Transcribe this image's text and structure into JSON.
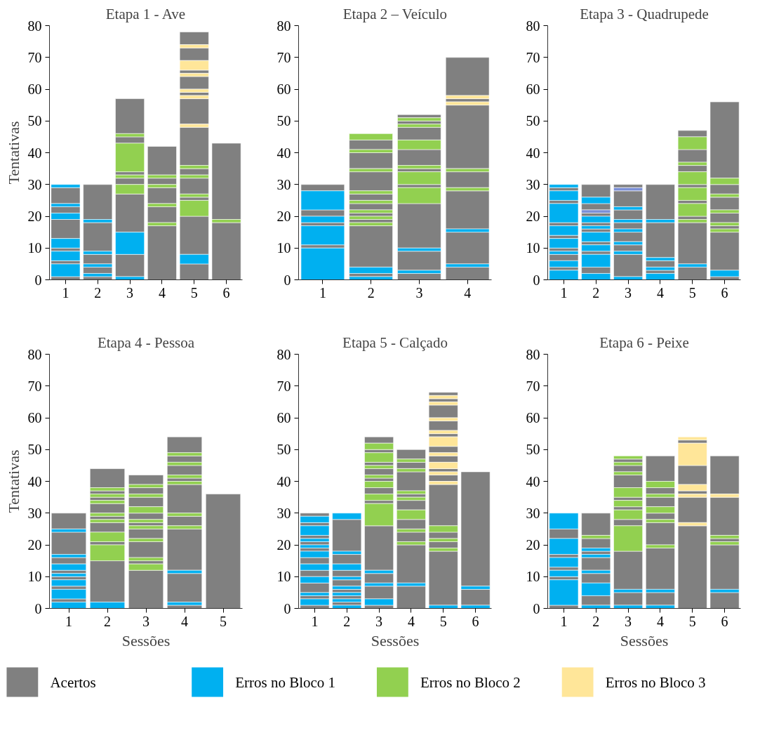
{
  "chart_data": [
    {
      "type": "bar",
      "title": "Etapa 1 - Ave",
      "legend": "bottom",
      "ylabel": "Tentativas",
      "categories": [
        "1",
        "2",
        "3",
        "4",
        "5",
        "6"
      ],
      "ylim": [
        0,
        80
      ],
      "yticks": [
        0,
        10,
        20,
        30,
        40,
        50,
        60,
        70,
        80
      ],
      "series": [
        {
          "name": "Acertos",
          "color": "#808080",
          "x": [
            "1",
            "1",
            "1",
            "1",
            "1",
            "1",
            "2",
            "2",
            "2",
            "2",
            "2",
            "3",
            "3",
            "3",
            "3",
            "3",
            "3",
            "4",
            "4",
            "4",
            "4",
            "4",
            "5",
            "5",
            "5",
            "5",
            "5",
            "5",
            "5",
            "5",
            "5",
            "5",
            "5",
            "5",
            "6",
            "6"
          ],
          "base": [
            0,
            5,
            9,
            13,
            21,
            24,
            0,
            2,
            5,
            9,
            19,
            1,
            15,
            30,
            33,
            43,
            46,
            0,
            18,
            24,
            30,
            33,
            0,
            8,
            25,
            27,
            33,
            36,
            49,
            58,
            60,
            65,
            69,
            74,
            0,
            19
          ],
          "values": [
            1,
            1,
            1,
            6,
            2,
            5,
            1,
            2,
            3,
            9,
            11,
            7,
            12,
            2,
            1,
            2,
            11,
            17,
            5,
            5,
            2,
            9,
            5,
            12,
            1,
            5,
            2,
            12,
            8,
            1,
            4,
            1,
            4,
            4,
            18,
            24
          ]
        },
        {
          "name": "Erros no Bloco 1",
          "color": "#00b0f0",
          "x": [
            "1",
            "1",
            "1",
            "1",
            "1",
            "1",
            "2",
            "2",
            "2",
            "2",
            "3",
            "3",
            "5"
          ],
          "base": [
            1,
            6,
            10,
            19,
            23,
            29,
            1,
            4,
            8,
            18,
            0,
            8,
            5
          ],
          "values": [
            4,
            3,
            3,
            2,
            1,
            1,
            1,
            1,
            1,
            1,
            1,
            7,
            3
          ]
        },
        {
          "name": "Erros no Bloco 2",
          "color": "#92d050",
          "x": [
            "3",
            "3",
            "3",
            "3",
            "4",
            "4",
            "4",
            "4",
            "5",
            "5",
            "5",
            "5",
            "6"
          ],
          "base": [
            27,
            32,
            34,
            45,
            17,
            23,
            29,
            32,
            20,
            26,
            32,
            35,
            18
          ],
          "values": [
            3,
            1,
            9,
            1,
            1,
            1,
            1,
            1,
            5,
            1,
            1,
            1,
            1
          ]
        },
        {
          "name": "Erros no Bloco 3",
          "color": "#ffe699",
          "x": [
            "5",
            "5",
            "5",
            "5",
            "5",
            "5"
          ],
          "base": [
            48,
            57,
            59,
            64,
            66,
            73
          ],
          "values": [
            1,
            1,
            1,
            1,
            3,
            1
          ]
        }
      ]
    },
    {
      "type": "bar",
      "title": "Etapa 2 – Veículo",
      "legend": "bottom",
      "categories": [
        "1",
        "2",
        "3",
        "4"
      ],
      "ylim": [
        0,
        80
      ],
      "yticks": [
        0,
        10,
        20,
        30,
        40,
        50,
        60,
        70,
        80
      ],
      "series": [
        {
          "name": "Acertos",
          "color": "#808080",
          "x": [
            "1",
            "1",
            "1",
            "1",
            "2",
            "2",
            "2",
            "2",
            "2",
            "2",
            "2",
            "2",
            "2",
            "3",
            "3",
            "3",
            "3",
            "3",
            "3",
            "3",
            "3",
            "3",
            "4",
            "4",
            "4",
            "4",
            "4",
            "4",
            "4"
          ],
          "base": [
            10,
            17,
            20,
            28,
            1,
            4,
            18,
            20,
            22,
            25,
            28,
            35,
            41,
            0,
            3,
            10,
            29,
            34,
            36,
            44,
            49,
            51,
            0,
            5,
            16,
            29,
            35,
            56,
            58
          ],
          "values": [
            1,
            1,
            2,
            2,
            1,
            13,
            1,
            1,
            2,
            2,
            6,
            5,
            3,
            2,
            6,
            14,
            1,
            1,
            5,
            4,
            1,
            1,
            4,
            10,
            12,
            5,
            20,
            1,
            12
          ]
        },
        {
          "name": "Erros no Bloco 1",
          "color": "#00b0f0",
          "x": [
            "1",
            "1",
            "1",
            "1",
            "2",
            "2",
            "3",
            "3",
            "4",
            "4"
          ],
          "base": [
            0,
            11,
            18,
            22,
            0,
            2,
            2,
            9,
            4,
            15
          ],
          "values": [
            10,
            6,
            2,
            6,
            1,
            2,
            1,
            1,
            1,
            1
          ]
        },
        {
          "name": "Erros no Bloco 2",
          "color": "#92d050",
          "x": [
            "2",
            "2",
            "2",
            "2",
            "2",
            "2",
            "2",
            "2",
            "3",
            "3",
            "3",
            "3",
            "3",
            "3",
            "4",
            "4"
          ],
          "base": [
            17,
            19,
            21,
            24,
            27,
            34,
            40,
            44,
            24,
            30,
            35,
            41,
            48,
            50,
            28,
            34
          ],
          "values": [
            1,
            1,
            1,
            1,
            1,
            1,
            1,
            2,
            5,
            4,
            1,
            3,
            1,
            1,
            1,
            1
          ]
        },
        {
          "name": "Erros no Bloco 3",
          "color": "#ffe699",
          "x": [
            "4",
            "4"
          ],
          "base": [
            55,
            57
          ],
          "values": [
            1,
            1
          ]
        }
      ]
    },
    {
      "type": "bar",
      "title": "Etapa 3 - Quadrupede",
      "legend": "bottom",
      "categories": [
        "1",
        "2",
        "3",
        "4",
        "5",
        "6"
      ],
      "ylim": [
        0,
        80
      ],
      "yticks": [
        0,
        10,
        20,
        30,
        40,
        50,
        60,
        70,
        80
      ],
      "series": [
        {
          "name": "Acertos",
          "color": "#808080",
          "x": [
            "1",
            "1",
            "1",
            "1",
            "1",
            "1",
            "1",
            "2",
            "2",
            "2",
            "2",
            "2",
            "2",
            "2",
            "2",
            "3",
            "3",
            "3",
            "3",
            "3",
            "3",
            "3",
            "4",
            "4",
            "4",
            "4",
            "5",
            "5",
            "5",
            "5",
            "5",
            "5",
            "5",
            "5",
            "6",
            "6",
            "6",
            "6",
            "6",
            "6",
            "6"
          ],
          "base": [
            3,
            6,
            9,
            13,
            17,
            24,
            28,
            2,
            8,
            11,
            15,
            17,
            20,
            22,
            26,
            1,
            9,
            12,
            16,
            19,
            23,
            29,
            2,
            4,
            7,
            19,
            0,
            5,
            19,
            24,
            29,
            34,
            37,
            45,
            0,
            3,
            16,
            18,
            22,
            27,
            32
          ],
          "values": [
            1,
            2,
            1,
            1,
            1,
            1,
            1,
            2,
            1,
            1,
            1,
            1,
            1,
            2,
            4,
            7,
            2,
            3,
            2,
            3,
            5,
            1,
            1,
            2,
            11,
            11,
            4,
            13,
            1,
            1,
            1,
            2,
            4,
            2,
            1,
            12,
            1,
            3,
            4,
            3,
            24
          ]
        },
        {
          "name": "Erros no Bloco 1",
          "color": "#00b0f0",
          "x": [
            "1",
            "1",
            "1",
            "1",
            "1",
            "1",
            "1",
            "1",
            "2",
            "2",
            "2",
            "2",
            "2",
            "2",
            "2",
            "3",
            "3",
            "3",
            "3",
            "3",
            "3",
            "4",
            "4",
            "4",
            "4",
            "5",
            "6"
          ],
          "base": [
            0,
            4,
            8,
            10,
            14,
            18,
            25,
            29,
            0,
            4,
            9,
            12,
            16,
            18,
            24,
            0,
            8,
            11,
            15,
            18,
            22,
            0,
            3,
            6,
            18,
            4,
            1
          ],
          "values": [
            3,
            2,
            1,
            3,
            3,
            6,
            3,
            1,
            2,
            4,
            2,
            3,
            1,
            2,
            2,
            1,
            1,
            1,
            1,
            1,
            1,
            2,
            1,
            1,
            1,
            1,
            2
          ]
        },
        {
          "color": "#7b8fd6",
          "x": [
            "2",
            "3"
          ],
          "base": [
            21,
            28
          ],
          "values": [
            1,
            1
          ]
        },
        {
          "name": "Erros no Bloco 2",
          "color": "#92d050",
          "x": [
            "5",
            "5",
            "5",
            "5",
            "5",
            "5",
            "6",
            "6",
            "6",
            "6",
            "6"
          ],
          "base": [
            18,
            20,
            25,
            30,
            36,
            41,
            15,
            17,
            21,
            26,
            30
          ],
          "values": [
            1,
            4,
            4,
            4,
            1,
            4,
            1,
            1,
            1,
            1,
            2
          ]
        }
      ]
    },
    {
      "type": "bar",
      "title": "Etapa 4 - Pessoa",
      "legend": "bottom",
      "ylabel": "Tentativas",
      "xlabel": "Sessões",
      "categories": [
        "1",
        "2",
        "3",
        "4",
        "5"
      ],
      "ylim": [
        0,
        80
      ],
      "yticks": [
        0,
        10,
        20,
        30,
        40,
        50,
        60,
        70,
        80
      ],
      "series": [
        {
          "name": "Acertos",
          "color": "#808080",
          "x": [
            "1",
            "1",
            "1",
            "1",
            "1",
            "1",
            "1",
            "2",
            "2",
            "2",
            "2",
            "2",
            "2",
            "2",
            "2",
            "3",
            "3",
            "3",
            "3",
            "3",
            "3",
            "3",
            "3",
            "3",
            "4",
            "4",
            "4",
            "4",
            "4",
            "4",
            "4",
            "4",
            "4",
            "5"
          ],
          "base": [
            2,
            6,
            9,
            11,
            14,
            17,
            25,
            2,
            20,
            24,
            28,
            30,
            34,
            36,
            38,
            0,
            14,
            16,
            22,
            26,
            28,
            32,
            36,
            39,
            0,
            2,
            12,
            26,
            30,
            40,
            42,
            46,
            49,
            0
          ],
          "values": [
            1,
            1,
            1,
            1,
            2,
            7,
            5,
            13,
            1,
            3,
            1,
            3,
            1,
            1,
            6,
            12,
            1,
            5,
            3,
            1,
            2,
            3,
            2,
            3,
            1,
            9,
            13,
            3,
            9,
            1,
            3,
            2,
            5,
            36
          ]
        },
        {
          "name": "Erros no Bloco 1",
          "color": "#00b0f0",
          "x": [
            "1",
            "1",
            "1",
            "1",
            "1",
            "1",
            "1",
            "2",
            "4",
            "4"
          ],
          "base": [
            0,
            3,
            7,
            10,
            12,
            16,
            24,
            0,
            1,
            11
          ],
          "values": [
            2,
            3,
            2,
            1,
            2,
            1,
            1,
            2,
            1,
            1
          ]
        },
        {
          "name": "Erros no Bloco 2",
          "color": "#92d050",
          "x": [
            "2",
            "2",
            "2",
            "2",
            "2",
            "2",
            "2",
            "3",
            "3",
            "3",
            "3",
            "3",
            "3",
            "3",
            "3",
            "4",
            "4",
            "4",
            "4",
            "4",
            "4"
          ],
          "base": [
            15,
            21,
            27,
            29,
            33,
            35,
            37,
            12,
            15,
            21,
            25,
            27,
            30,
            35,
            38,
            25,
            29,
            39,
            41,
            45,
            48
          ],
          "values": [
            5,
            3,
            1,
            1,
            1,
            1,
            1,
            2,
            1,
            1,
            1,
            1,
            2,
            1,
            1,
            1,
            1,
            1,
            1,
            1,
            1
          ]
        }
      ]
    },
    {
      "type": "bar",
      "title": "Etapa 5 - Calçado",
      "legend": "bottom",
      "xlabel": "Sessões",
      "categories": [
        "1",
        "2",
        "3",
        "4",
        "5",
        "6"
      ],
      "ylim": [
        0,
        80
      ],
      "yticks": [
        0,
        10,
        20,
        30,
        40,
        50,
        60,
        70,
        80
      ],
      "series": [
        {
          "name": "Acertos",
          "color": "#808080",
          "x": [
            "1",
            "1",
            "1",
            "1",
            "1",
            "1",
            "1",
            "1",
            "1",
            "1",
            "2",
            "2",
            "2",
            "2",
            "2",
            "2",
            "2",
            "3",
            "3",
            "3",
            "3",
            "3",
            "3",
            "3",
            "3",
            "3",
            "3",
            "3",
            "4",
            "4",
            "4",
            "4",
            "4",
            "4",
            "4",
            "4",
            "4",
            "5",
            "5",
            "5",
            "5",
            "5",
            "5",
            "5",
            "5",
            "5",
            "5",
            "5",
            "5",
            "5",
            "6",
            "6"
          ],
          "base": [
            0,
            3,
            5,
            10,
            14,
            18,
            20,
            22,
            26,
            29,
            1,
            3,
            5,
            7,
            10,
            14,
            18,
            0,
            3,
            8,
            12,
            33,
            36,
            40,
            42,
            45,
            49,
            52,
            0,
            8,
            21,
            25,
            31,
            35,
            37,
            44,
            47,
            1,
            19,
            22,
            26,
            40,
            43,
            46,
            49,
            54,
            56,
            60,
            65,
            67,
            1,
            7
          ],
          "values": [
            1,
            1,
            3,
            2,
            2,
            1,
            1,
            1,
            1,
            1,
            1,
            1,
            1,
            2,
            2,
            3,
            10,
            1,
            4,
            3,
            14,
            1,
            2,
            1,
            2,
            1,
            1,
            2,
            7,
            12,
            3,
            3,
            3,
            1,
            6,
            2,
            3,
            17,
            2,
            2,
            13,
            2,
            1,
            2,
            2,
            1,
            3,
            4,
            1,
            1,
            5,
            36
          ]
        },
        {
          "name": "Erros no Bloco 1",
          "color": "#00b0f0",
          "x": [
            "1",
            "1",
            "1",
            "1",
            "1",
            "1",
            "1",
            "1",
            "1",
            "2",
            "2",
            "2",
            "2",
            "2",
            "2",
            "2",
            "2",
            "3",
            "3",
            "3",
            "4",
            "5",
            "6",
            "6"
          ],
          "base": [
            1,
            4,
            8,
            12,
            16,
            19,
            21,
            23,
            27,
            0,
            2,
            4,
            6,
            9,
            12,
            17,
            28,
            1,
            7,
            11,
            7,
            0,
            0,
            6
          ],
          "values": [
            2,
            1,
            2,
            2,
            2,
            1,
            1,
            3,
            2,
            1,
            1,
            1,
            1,
            1,
            2,
            1,
            2,
            2,
            1,
            1,
            1,
            1,
            1,
            1
          ]
        },
        {
          "name": "Erros no Bloco 2",
          "color": "#92d050",
          "x": [
            "3",
            "3",
            "3",
            "3",
            "3",
            "3",
            "3",
            "4",
            "4",
            "4",
            "4",
            "4",
            "4",
            "4",
            "5",
            "5",
            "5"
          ],
          "base": [
            26,
            34,
            38,
            41,
            44,
            46,
            50,
            20,
            24,
            28,
            34,
            36,
            43,
            46,
            18,
            21,
            24
          ],
          "values": [
            7,
            2,
            2,
            1,
            1,
            3,
            2,
            1,
            1,
            3,
            1,
            1,
            1,
            1,
            1,
            1,
            2
          ]
        },
        {
          "name": "Erros no Bloco 3",
          "color": "#ffe699",
          "x": [
            "5",
            "5",
            "5",
            "5",
            "5",
            "5",
            "5",
            "5",
            "5"
          ],
          "base": [
            39,
            42,
            44,
            48,
            51,
            55,
            59,
            64,
            66
          ],
          "values": [
            1,
            1,
            2,
            1,
            3,
            1,
            1,
            1,
            1
          ]
        }
      ]
    },
    {
      "type": "bar",
      "title": "Etapa 6 - Peixe",
      "xlabel": "Sessões",
      "legend": "bottom",
      "categories": [
        "1",
        "2",
        "3",
        "4",
        "5",
        "6"
      ],
      "ylim": [
        0,
        80
      ],
      "yticks": [
        0,
        10,
        20,
        30,
        40,
        50,
        60,
        70,
        80
      ],
      "series": [
        {
          "name": "Acertos",
          "color": "#808080",
          "x": [
            "1",
            "1",
            "1",
            "1",
            "1",
            "2",
            "2",
            "2",
            "2",
            "2",
            "2",
            "3",
            "3",
            "3",
            "3",
            "3",
            "3",
            "3",
            "3",
            "4",
            "4",
            "4",
            "4",
            "4",
            "4",
            "4",
            "5",
            "5",
            "5",
            "5",
            "5",
            "6",
            "6",
            "6",
            "6",
            "6"
          ],
          "base": [
            0,
            9,
            12,
            16,
            22,
            1,
            8,
            12,
            17,
            19,
            23,
            1,
            6,
            26,
            31,
            34,
            38,
            43,
            46,
            1,
            6,
            20,
            28,
            32,
            36,
            40,
            0,
            27,
            36,
            39,
            52,
            0,
            6,
            21,
            23,
            36
          ],
          "values": [
            1,
            1,
            1,
            1,
            3,
            3,
            3,
            4,
            1,
            3,
            7,
            4,
            12,
            2,
            1,
            1,
            4,
            2,
            1,
            4,
            13,
            7,
            2,
            3,
            2,
            8,
            26,
            8,
            1,
            6,
            1,
            5,
            14,
            1,
            12,
            12
          ]
        },
        {
          "name": "Erros no Bloco 1",
          "color": "#00b0f0",
          "x": [
            "1",
            "1",
            "1",
            "1",
            "1",
            "2",
            "2",
            "2",
            "2",
            "2",
            "3",
            "3",
            "4",
            "4",
            "6"
          ],
          "base": [
            1,
            10,
            13,
            17,
            25,
            0,
            4,
            11,
            16,
            18,
            0,
            5,
            0,
            5,
            5
          ],
          "values": [
            8,
            2,
            3,
            5,
            5,
            1,
            4,
            1,
            1,
            1,
            1,
            1,
            1,
            1,
            1
          ]
        },
        {
          "name": "Erros no Bloco 2",
          "color": "#92d050",
          "x": [
            "2",
            "3",
            "3",
            "3",
            "3",
            "3",
            "3",
            "3",
            "4",
            "4",
            "4",
            "4",
            "4",
            "6",
            "6"
          ],
          "base": [
            22,
            18,
            28,
            32,
            35,
            42,
            45,
            47,
            19,
            27,
            30,
            35,
            38,
            20,
            22
          ],
          "values": [
            1,
            8,
            3,
            2,
            3,
            1,
            1,
            1,
            1,
            1,
            2,
            1,
            2,
            1,
            1
          ]
        },
        {
          "name": "Erros no Bloco 3",
          "color": "#ffe699",
          "x": [
            "5",
            "5",
            "5",
            "5",
            "5",
            "6"
          ],
          "base": [
            26,
            35,
            37,
            45,
            53,
            35
          ],
          "values": [
            1,
            1,
            2,
            7,
            1,
            1
          ]
        }
      ]
    }
  ]
}
